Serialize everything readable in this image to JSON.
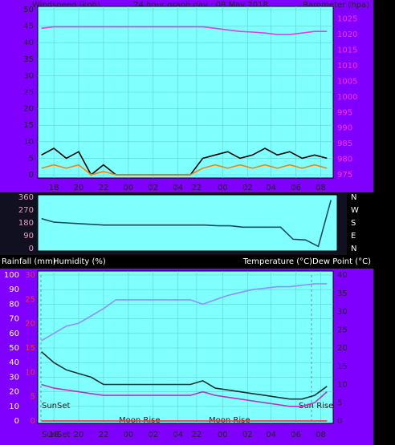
{
  "chart_data": [
    {
      "type": "line",
      "title": "24 hour graph day : 08 May 2018",
      "ylabel": "Windspeed (kph)",
      "y2label": "Barometer (hpa)",
      "x": [
        17,
        18,
        19,
        20,
        21,
        22,
        23,
        24,
        25,
        26,
        27,
        28,
        29,
        30,
        31,
        32,
        33,
        34,
        35,
        36,
        37,
        38,
        39,
        40
      ],
      "xlim": [
        16.7,
        40.5
      ],
      "xticks": [
        {
          "value": 18,
          "label": "18"
        },
        {
          "value": 20,
          "label": "20"
        },
        {
          "value": 22,
          "label": "22"
        },
        {
          "value": 24,
          "label": "00"
        },
        {
          "value": 26,
          "label": "02"
        },
        {
          "value": 28,
          "label": "04"
        },
        {
          "value": 29.5,
          "label": "22"
        },
        {
          "value": 31.6,
          "label": "00"
        },
        {
          "value": 33.6,
          "label": "02"
        },
        {
          "value": 35.5,
          "label": "04"
        },
        {
          "value": 37.5,
          "label": "06"
        },
        {
          "value": 39.5,
          "label": "08"
        }
      ],
      "ylim": [
        0,
        50
      ],
      "yticks": [
        0,
        5,
        10,
        15,
        20,
        25,
        30,
        35,
        40,
        45,
        50
      ],
      "y2lim": [
        975,
        1028
      ],
      "y2ticks": [
        975,
        980,
        985,
        990,
        995,
        1000,
        1005,
        1010,
        1015,
        1020,
        1025
      ],
      "grid": true,
      "series": [
        {
          "color": "#000000",
          "values": [
            6,
            8,
            5,
            7,
            0,
            3,
            0,
            0,
            0,
            0,
            0,
            0,
            0,
            5,
            6,
            7,
            5,
            6,
            8,
            6,
            7,
            5,
            6,
            5
          ]
        },
        {
          "color": "#ff8000",
          "values": [
            2,
            3,
            2,
            3,
            0,
            1,
            0,
            0,
            0,
            0,
            0,
            0,
            0,
            2,
            3,
            2,
            3,
            2,
            3,
            2,
            3,
            2,
            3,
            2
          ]
        },
        {
          "color": "#e040e0",
          "axis": "y2",
          "values": [
            1022,
            1022.5,
            1022.5,
            1022.5,
            1022.5,
            1022.5,
            1022.5,
            1022.5,
            1022.5,
            1022.5,
            1022.5,
            1022.5,
            1022.5,
            1022.5,
            1022,
            1021.5,
            1021,
            1020.8,
            1020.5,
            1020,
            1020,
            1020.5,
            1021,
            1021
          ]
        }
      ]
    },
    {
      "type": "line",
      "x": [
        17,
        18,
        19,
        20,
        21,
        22,
        23,
        24,
        25,
        26,
        27,
        28,
        29,
        30,
        31,
        32,
        33,
        34,
        35,
        36,
        37,
        38,
        39,
        40
      ],
      "xlim": [
        16.7,
        40.5
      ],
      "ylim": [
        0,
        360
      ],
      "yticks": [
        0,
        90,
        180,
        270,
        360
      ],
      "y2lim": [
        0,
        360
      ],
      "y2ticks": [
        {
          "value": 360,
          "label": "N"
        },
        {
          "value": 270,
          "label": "W"
        },
        {
          "value": 180,
          "label": "S"
        },
        {
          "value": 90,
          "label": "E"
        },
        {
          "value": 0,
          "label": "N"
        }
      ],
      "grid": false,
      "series": [
        {
          "color": "#1a4a5a",
          "values": [
            210,
            185,
            180,
            175,
            170,
            165,
            165,
            165,
            165,
            165,
            165,
            165,
            165,
            165,
            160,
            160,
            150,
            150,
            150,
            150,
            65,
            60,
            15,
            340
          ]
        }
      ]
    },
    {
      "type": "line",
      "ylabel": "Humidity (%)",
      "y3label": "Rainfall (mm)",
      "y2label": "Temperature (°C)Dew Point (°C)",
      "annotations": [
        "SunSet",
        "Moon Rise",
        "Moon Rise",
        "Sun Rise",
        "SunSet"
      ],
      "x": [
        17,
        18,
        19,
        20,
        21,
        22,
        23,
        24,
        25,
        26,
        27,
        28,
        29,
        30,
        31,
        32,
        33,
        34,
        35,
        36,
        37,
        38,
        39,
        40
      ],
      "xlim": [
        16.7,
        40.5
      ],
      "xticks": [
        {
          "value": 18,
          "label": "18"
        },
        {
          "value": 20,
          "label": "20"
        },
        {
          "value": 22,
          "label": "22"
        },
        {
          "value": 24,
          "label": "00"
        },
        {
          "value": 26,
          "label": "02"
        },
        {
          "value": 28,
          "label": "04"
        },
        {
          "value": 29.5,
          "label": "22"
        },
        {
          "value": 31.6,
          "label": "00"
        },
        {
          "value": 33.6,
          "label": "02"
        },
        {
          "value": 35.5,
          "label": "04"
        },
        {
          "value": 37.5,
          "label": "06"
        },
        {
          "value": 39.5,
          "label": "08"
        }
      ],
      "ylim": [
        0,
        100
      ],
      "yticks": [
        0,
        10,
        20,
        30,
        40,
        50,
        60,
        70,
        80,
        90,
        100
      ],
      "y2lim": [
        0,
        40
      ],
      "y2ticks": [
        0,
        5,
        10,
        15,
        20,
        25,
        30,
        35,
        40
      ],
      "y3lim": [
        0,
        30
      ],
      "y3ticks": [
        0,
        5,
        10,
        15,
        20,
        25,
        30
      ],
      "grid": true,
      "series": [
        {
          "color": "#9090ff",
          "values": [
            55,
            60,
            65,
            67,
            72,
            77,
            83,
            83,
            83,
            83,
            83,
            83,
            83,
            80,
            83,
            86,
            88,
            90,
            91,
            92,
            92,
            93,
            94,
            94
          ]
        },
        {
          "color": "#1a3030",
          "axis": "y2",
          "values": [
            19,
            16,
            14,
            13,
            12,
            10,
            10,
            10,
            10,
            10,
            10,
            10,
            10,
            11,
            9,
            8.5,
            8,
            7.5,
            7,
            6.5,
            6,
            6,
            7,
            9.5
          ]
        },
        {
          "color": "#c030c0",
          "axis": "y2",
          "values": [
            10,
            9,
            8.5,
            8,
            7.5,
            7,
            7,
            7,
            7,
            7,
            7,
            7,
            7,
            8,
            7,
            6.5,
            6,
            5.5,
            5,
            4.5,
            4,
            4,
            5,
            8
          ]
        },
        {
          "color": "#ff2020",
          "axis": "y3",
          "values": [
            0,
            0,
            0,
            0,
            0,
            0,
            0,
            0,
            0,
            0,
            0,
            0,
            0,
            0,
            0,
            0,
            0,
            0,
            0,
            0,
            0,
            0,
            0,
            0
          ]
        }
      ]
    }
  ]
}
